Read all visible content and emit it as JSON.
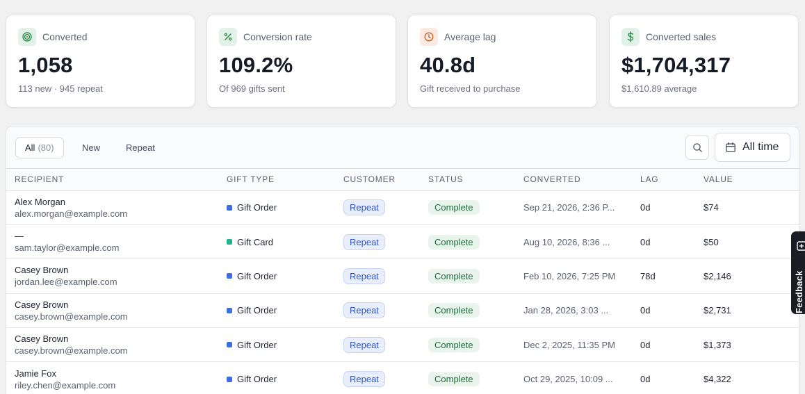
{
  "stats": [
    {
      "label": "Converted",
      "value": "1,058",
      "sub": "113 new · 945 repeat",
      "icon": "target-icon"
    },
    {
      "label": "Conversion rate",
      "value": "109.2%",
      "sub": "Of 969 gifts sent",
      "icon": "percent-icon"
    },
    {
      "label": "Average lag",
      "value": "40.8d",
      "sub": "Gift received to purchase",
      "icon": "clock-icon"
    },
    {
      "label": "Converted sales",
      "value": "$1,704,317",
      "sub": "$1,610.89 average",
      "icon": "dollar-icon"
    }
  ],
  "tabs": {
    "all": {
      "label": "All",
      "count": "(80)"
    },
    "new": {
      "label": "New"
    },
    "repeat": {
      "label": "Repeat"
    }
  },
  "date_range": {
    "label": "All time"
  },
  "columns": {
    "recipient": "Recipient",
    "gift_type": "Gift type",
    "customer": "Customer",
    "status": "Status",
    "converted": "Converted",
    "lag": "Lag",
    "value": "Value"
  },
  "rows": [
    {
      "name": "Alex Morgan",
      "email": "alex.morgan@example.com",
      "gift_type": "Gift Order",
      "customer": "Repeat",
      "status": "Complete",
      "converted": "Sep 21, 2026, 2:36 P...",
      "lag": "0d",
      "value": "$74"
    },
    {
      "name": "—",
      "email": "sam.taylor@example.com",
      "gift_type": "Gift Card",
      "customer": "Repeat",
      "status": "Complete",
      "converted": "Aug 10, 2026, 8:36 ...",
      "lag": "0d",
      "value": "$50"
    },
    {
      "name": "Casey Brown",
      "email": "jordan.lee@example.com",
      "gift_type": "Gift Order",
      "customer": "Repeat",
      "status": "Complete",
      "converted": "Feb 10, 2026, 7:25 PM",
      "lag": "78d",
      "value": "$2,146"
    },
    {
      "name": "Casey Brown",
      "email": "casey.brown@example.com",
      "gift_type": "Gift Order",
      "customer": "Repeat",
      "status": "Complete",
      "converted": "Jan 28, 2026, 3:03 ...",
      "lag": "0d",
      "value": "$2,731"
    },
    {
      "name": "Casey Brown",
      "email": "casey.brown@example.com",
      "gift_type": "Gift Order",
      "customer": "Repeat",
      "status": "Complete",
      "converted": "Dec 2, 2025, 11:35 PM",
      "lag": "0d",
      "value": "$1,373"
    },
    {
      "name": "Jamie Fox",
      "email": "riley.chen@example.com",
      "gift_type": "Gift Order",
      "customer": "Repeat",
      "status": "Complete",
      "converted": "Oct 29, 2025, 10:09 ...",
      "lag": "0d",
      "value": "$4,322"
    }
  ],
  "feedback": {
    "label": "Feedback"
  },
  "colors": {
    "gift_order": "#3b6fe0",
    "gift_card": "#1fb48c",
    "converted_icon": "#2e8b4a",
    "rate_icon": "#2e8b4a",
    "lag_icon": "#c4622d",
    "sales_icon": "#2e8b4a"
  }
}
